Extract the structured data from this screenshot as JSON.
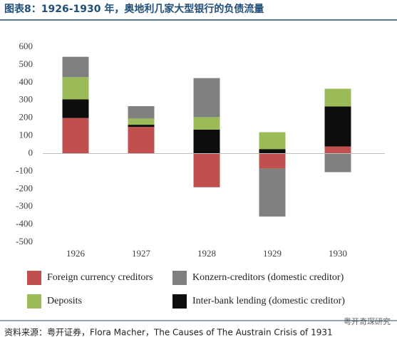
{
  "chart_data": {
    "type": "stacked_bar",
    "title": "图表8：1926-1930 年，奥地利几家大型银行的负债流量",
    "categories": [
      "1926",
      "1927",
      "1928",
      "1929",
      "1930"
    ],
    "series": [
      {
        "name": "Foreign currency creditors",
        "color": "#c0504d",
        "values": [
          200,
          150,
          -190,
          -85,
          40
        ]
      },
      {
        "name": "Konzern-creditors (domestic creditor)",
        "color": "#808080",
        "values": [
          115,
          70,
          220,
          -270,
          -105
        ]
      },
      {
        "name": "Deposits",
        "color": "#9bbb59",
        "values": [
          125,
          35,
          70,
          95,
          100
        ]
      },
      {
        "name": "Inter-bank lending (domestic creditor)",
        "color": "#0d0d0d",
        "values": [
          105,
          12,
          135,
          25,
          225
        ]
      }
    ],
    "ylim": [
      -500,
      600
    ],
    "yticks": [
      600,
      500,
      400,
      300,
      200,
      100,
      0,
      -100,
      -200,
      -300,
      -400,
      -500
    ],
    "source": "资料来源：粤开证券，Flora Macher，The Causes of The Austrain Crisis of 1931",
    "watermark": "粤开奇琛研究"
  }
}
